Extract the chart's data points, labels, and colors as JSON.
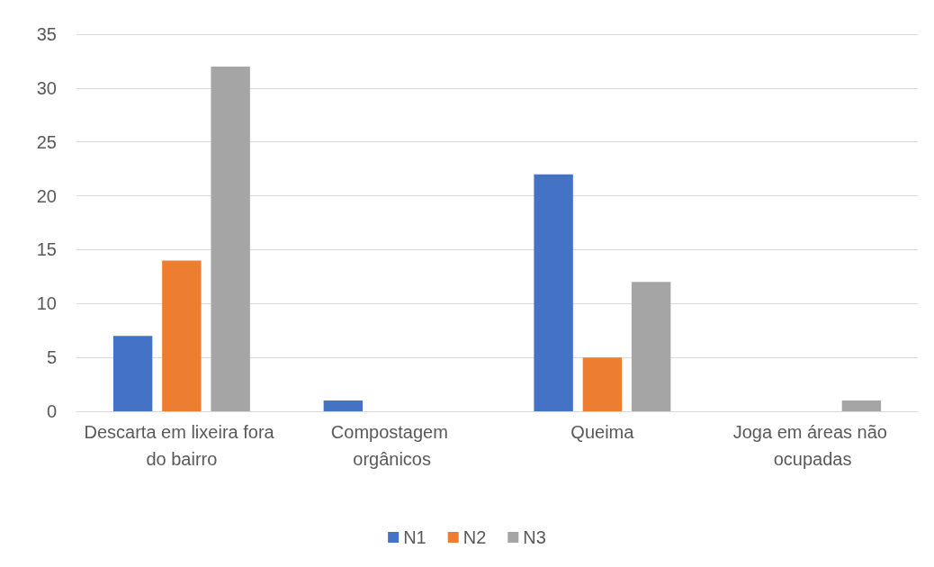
{
  "chart_data": {
    "type": "bar",
    "categories": [
      "Descarta em lixeira fora do bairro",
      "Compostagem orgânicos",
      "Queima",
      "Joga em áreas não ocupadas"
    ],
    "series": [
      {
        "name": "N1",
        "color": "#4472c4",
        "values": [
          7,
          1,
          22,
          0
        ]
      },
      {
        "name": "N2",
        "color": "#ed7d31",
        "values": [
          14,
          0,
          5,
          0
        ]
      },
      {
        "name": "N3",
        "color": "#a5a5a5",
        "values": [
          32,
          0,
          12,
          1
        ]
      }
    ],
    "ylim": [
      0,
      35
    ],
    "yticks": [
      0,
      5,
      10,
      15,
      20,
      25,
      30,
      35
    ],
    "grid": "y",
    "legend": "bottom"
  }
}
